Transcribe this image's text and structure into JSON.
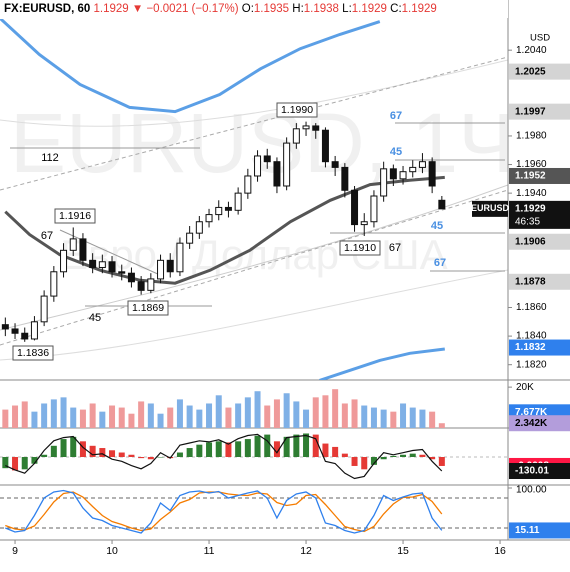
{
  "header": {
    "symbol": "FX:EURUSD, 60",
    "last": "1.1929",
    "arrow": "▼",
    "change": "−0.0021 (−0.17%)",
    "o_label": "O:",
    "o": "1.1935",
    "h_label": "H:",
    "h": "1.1938",
    "l_label": "L:",
    "l": "1.1929",
    "c_label": "C:",
    "c": "1.1929"
  },
  "chart_data": {
    "type": "candlestick",
    "currency": "USD",
    "watermark": [
      "EURUSD, 1Ч",
      "Евро / Доллар США"
    ],
    "x": [
      -0.1,
      0,
      0.1,
      0.2,
      0.3,
      0.4,
      0.5,
      0.6,
      0.7,
      0.8,
      0.9,
      1,
      1.1,
      1.2,
      1.3,
      1.4,
      1.5,
      1.6,
      1.7,
      1.8,
      1.9,
      2,
      2.1,
      2.2,
      2.3,
      2.4,
      2.5,
      2.6,
      2.7,
      2.8,
      2.9,
      3,
      3.1,
      3.2,
      3.3,
      3.4,
      3.5,
      3.6,
      3.7,
      3.8,
      3.9,
      4,
      4.1,
      4.2,
      4.3,
      4.4
    ],
    "open": [
      1.1848,
      1.1845,
      1.1842,
      1.1838,
      1.185,
      1.1868,
      1.1885,
      1.19,
      1.1908,
      1.1893,
      1.1888,
      1.1892,
      1.1885,
      1.1884,
      1.1878,
      1.1872,
      1.188,
      1.1893,
      1.1885,
      1.1905,
      1.1912,
      1.192,
      1.1925,
      1.193,
      1.1928,
      1.194,
      1.1952,
      1.1966,
      1.1962,
      1.1945,
      1.1975,
      1.1985,
      1.1987,
      1.1984,
      1.1962,
      1.1958,
      1.1942,
      1.1918,
      1.192,
      1.1938,
      1.1957,
      1.195,
      1.1955,
      1.1958,
      1.1962,
      1.1935
    ],
    "high": [
      1.1853,
      1.1849,
      1.1846,
      1.1854,
      1.1872,
      1.1889,
      1.1905,
      1.1916,
      1.1912,
      1.1898,
      1.1897,
      1.1896,
      1.189,
      1.1888,
      1.1882,
      1.1884,
      1.1897,
      1.1898,
      1.1909,
      1.1917,
      1.1924,
      1.1929,
      1.1935,
      1.1934,
      1.1944,
      1.1957,
      1.197,
      1.1971,
      1.1965,
      1.1979,
      1.1989,
      1.199,
      1.1989,
      1.1986,
      1.1966,
      1.1961,
      1.1945,
      1.1926,
      1.1942,
      1.1962,
      1.196,
      1.1959,
      1.1963,
      1.1968,
      1.1965,
      1.1938
    ],
    "low": [
      1.184,
      1.1838,
      1.1836,
      1.1837,
      1.1847,
      1.1864,
      1.1881,
      1.1896,
      1.1889,
      1.1884,
      1.1884,
      1.1881,
      1.1879,
      1.1874,
      1.1869,
      1.187,
      1.1877,
      1.1881,
      1.1882,
      1.1901,
      1.1908,
      1.1916,
      1.1921,
      1.1923,
      1.1925,
      1.1936,
      1.1948,
      1.1957,
      1.194,
      1.1942,
      1.1971,
      1.198,
      1.1978,
      1.1958,
      1.1952,
      1.1937,
      1.1913,
      1.191,
      1.1916,
      1.1934,
      1.1945,
      1.1946,
      1.1951,
      1.1954,
      1.194,
      1.1929
    ],
    "close": [
      1.1845,
      1.1842,
      1.1838,
      1.185,
      1.1868,
      1.1885,
      1.19,
      1.1908,
      1.1893,
      1.1888,
      1.1892,
      1.1885,
      1.1884,
      1.1878,
      1.1872,
      1.188,
      1.1893,
      1.1885,
      1.1905,
      1.1912,
      1.192,
      1.1925,
      1.193,
      1.1928,
      1.194,
      1.1952,
      1.1966,
      1.1962,
      1.1945,
      1.1975,
      1.1985,
      1.1987,
      1.1984,
      1.1962,
      1.1958,
      1.1942,
      1.1918,
      1.192,
      1.1938,
      1.1957,
      1.195,
      1.1955,
      1.1958,
      1.1962,
      1.1945,
      1.1929
    ],
    "xlim": [
      -0.155,
      5.082
    ],
    "ylim": [
      1.18093,
      1.20618
    ],
    "xticks": [
      {
        "value": 0,
        "label": "9"
      },
      {
        "value": 1,
        "label": "10"
      },
      {
        "value": 2,
        "label": "11"
      },
      {
        "value": 3,
        "label": "12"
      },
      {
        "value": 4,
        "label": "15"
      },
      {
        "value": 5,
        "label": "16"
      }
    ],
    "yticks": [
      {
        "value": 1.204,
        "label": "1.2040"
      },
      {
        "value": 1.198,
        "label": "1.1980"
      },
      {
        "value": 1.196,
        "label": "1.1960"
      },
      {
        "value": 1.194,
        "label": "1.1940"
      },
      {
        "value": 1.186,
        "label": "1.1860"
      },
      {
        "value": 1.184,
        "label": "1.1840"
      },
      {
        "value": 1.182,
        "label": "1.1820"
      }
    ],
    "overlays": [
      {
        "color": "#5b9fe6",
        "x": [
          -0.15,
          0.25,
          0.67,
          1.18,
          1.65,
          2.11,
          2.53,
          2.94,
          3.35,
          3.76
        ],
        "values": [
          1.2062,
          1.2037,
          1.2016,
          1.2,
          1.1997,
          1.2009,
          1.2027,
          1.2041,
          1.2051,
          1.206
        ]
      },
      {
        "color": "#5b9fe6",
        "x": [
          3.14,
          3.45,
          3.76,
          4.07,
          4.43
        ],
        "values": [
          1.1809,
          1.1816,
          1.1823,
          1.1828,
          1.1831
        ]
      },
      {
        "color": "#555555",
        "x": [
          -0.1,
          0.15,
          0.46,
          0.88,
          1.29,
          1.65,
          2.01,
          2.42,
          2.84,
          3.25,
          3.66,
          4.07,
          4.43
        ],
        "values": [
          1.1927,
          1.1911,
          1.1897,
          1.1886,
          1.1879,
          1.1877,
          1.1886,
          1.19,
          1.192,
          1.1935,
          1.1946,
          1.1949,
          1.1951
        ]
      }
    ],
    "price_tags": [
      {
        "value": 1.2025,
        "label": "1.2025",
        "bg": "#d4d4d4",
        "fg": "#000000"
      },
      {
        "value": 1.1997,
        "label": "1.1997",
        "bg": "#d4d4d4",
        "fg": "#000000"
      },
      {
        "value": 1.1952,
        "label": "1.1952",
        "bg": "#555555",
        "fg": "#ffffff"
      },
      {
        "value": 1.1906,
        "label": "1.1906",
        "bg": "#d4d4d4",
        "fg": "#000000"
      },
      {
        "value": 1.1878,
        "label": "1.1878",
        "bg": "#d4d4d4",
        "fg": "#000000"
      },
      {
        "value": 1.1832,
        "label": "1.1832",
        "bg": "#2f80ed",
        "fg": "#ffffff"
      }
    ],
    "last_tag": {
      "value": 1.1929,
      "label": "1.1929",
      "symbol": "EURUSD",
      "countdown": "46:35",
      "bg": "#111111",
      "fg": "#ffffff"
    },
    "annotations": [
      {
        "text": "1.1990",
        "kind": "box",
        "color": "#000000"
      },
      {
        "text": "1.1916",
        "kind": "box",
        "color": "#000000"
      },
      {
        "text": "1.1869",
        "kind": "box",
        "color": "#000000"
      },
      {
        "text": "1.1836",
        "kind": "box",
        "color": "#000000"
      },
      {
        "text": "1.1910",
        "kind": "box",
        "color": "#000000"
      },
      {
        "text": "112",
        "kind": "level",
        "color": "#000000"
      },
      {
        "text": "67",
        "kind": "level",
        "color": "#000000"
      },
      {
        "text": "45",
        "kind": "level",
        "color": "#000000"
      },
      {
        "text": "67",
        "kind": "level",
        "color": "#4a90e2"
      },
      {
        "text": "45",
        "kind": "level",
        "color": "#4a90e2"
      },
      {
        "text": "67",
        "kind": "level",
        "color": "#000000"
      },
      {
        "text": "45",
        "kind": "level",
        "color": "#4a90e2"
      },
      {
        "text": "67",
        "kind": "level",
        "color": "#4a90e2"
      }
    ],
    "up_color": "#ffffff",
    "down_color": "#111111",
    "volume": {
      "values": [
        9000,
        11000,
        13000,
        8000,
        12000,
        14000,
        15000,
        10000,
        9000,
        12000,
        8000,
        11000,
        10000,
        7000,
        13000,
        12000,
        7000,
        10000,
        14000,
        11000,
        9000,
        12000,
        16000,
        10000,
        12000,
        15000,
        18000,
        11000,
        14000,
        17000,
        13000,
        9000,
        15000,
        16000,
        19000,
        12000,
        14000,
        11000,
        10000,
        9000,
        8000,
        12000,
        10000,
        9000,
        8000,
        2342
      ],
      "ylim": [
        0,
        23000
      ],
      "yticks": [
        {
          "value": 20000,
          "label": "20K"
        }
      ],
      "up_color": "#7fb0e6",
      "down_color": "#ef9a9a",
      "tags": [
        {
          "value": 7677,
          "label": "7.677K",
          "bg": "#2f80ed",
          "fg": "#ffffff"
        },
        {
          "value": 2342,
          "label": "2.342K",
          "bg": "#b39ddb",
          "fg": "#000000"
        }
      ]
    },
    "macd": {
      "values": [
        -0.001,
        -0.0012,
        -0.0011,
        -0.0006,
        0.0002,
        0.001,
        0.0016,
        0.0018,
        0.0014,
        0.001,
        0.0008,
        0.0006,
        0.0004,
        0.0002,
        -0.0001,
        -0.0002,
        0.0,
        -0.0001,
        0.0004,
        0.0008,
        0.0011,
        0.0013,
        0.0014,
        0.0013,
        0.0014,
        0.0016,
        0.0019,
        0.002,
        0.0014,
        0.0018,
        0.002,
        0.0021,
        0.002,
        0.0012,
        0.0009,
        0.0003,
        -0.0008,
        -0.0011,
        -0.0007,
        -0.0002,
        0.0001,
        0.0002,
        0.0003,
        0.0002,
        -0.0002,
        -0.0008
      ],
      "ylim": [
        -0.0025,
        0.0025
      ],
      "rise_color": "#2e7d32",
      "fall_color": "#e53935",
      "cci": [
        -80,
        -120,
        -150,
        -60,
        60,
        150,
        180,
        190,
        90,
        20,
        30,
        -20,
        -40,
        -80,
        -110,
        -60,
        40,
        -10,
        110,
        130,
        150,
        140,
        160,
        120,
        170,
        200,
        210,
        150,
        40,
        180,
        190,
        200,
        170,
        -40,
        -60,
        -150,
        -200,
        -180,
        -60,
        40,
        20,
        40,
        60,
        70,
        -40,
        -130.01
      ],
      "y2lim": [
        -260,
        260
      ],
      "cci_color": "#111111",
      "tags": [
        {
          "value": -0.0008,
          "bg": "#ff1744",
          "fg": "#ffffff"
        },
        {
          "value": -130.01,
          "axis": "y2",
          "bg": "#111111",
          "fg": "#ffffff"
        }
      ]
    },
    "stoch": {
      "k": [
        20,
        12,
        15,
        45,
        80,
        92,
        95,
        90,
        60,
        40,
        35,
        25,
        20,
        15,
        10,
        30,
        70,
        55,
        85,
        92,
        94,
        90,
        93,
        80,
        85,
        90,
        94,
        80,
        40,
        75,
        88,
        92,
        80,
        30,
        25,
        15,
        10,
        15,
        45,
        85,
        75,
        82,
        88,
        90,
        40,
        15.11
      ],
      "d": [
        25,
        18,
        16,
        24,
        47,
        72,
        89,
        92,
        82,
        63,
        45,
        33,
        27,
        20,
        15,
        18,
        37,
        52,
        70,
        77,
        90,
        92,
        92,
        88,
        86,
        85,
        90,
        88,
        71,
        65,
        68,
        85,
        87,
        67,
        45,
        23,
        17,
        13,
        23,
        48,
        68,
        81,
        82,
        87,
        73,
        48
      ],
      "ylim": [
        -4,
        104
      ],
      "yticks": [
        {
          "value": 100,
          "label": "100.00"
        }
      ],
      "bands": [
        80,
        20
      ],
      "k_color": "#2f80ed",
      "d_color": "#f57c00",
      "tags": [
        {
          "value": 15.11,
          "bg": "#2f80ed",
          "fg": "#ffffff"
        }
      ]
    }
  }
}
